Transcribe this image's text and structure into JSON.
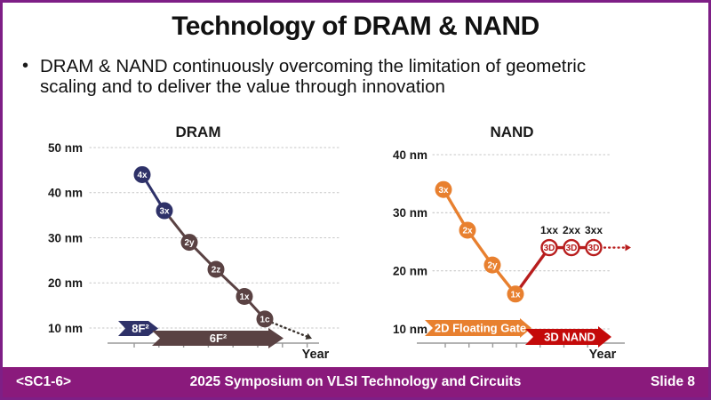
{
  "slide": {
    "title": "Technology of DRAM & NAND",
    "bullet_marker": "•",
    "bullet": "DRAM & NAND continuously overcoming the limitation of geometric\nscaling and to deliver the value through innovation"
  },
  "footer": {
    "left": "<SC1-6>",
    "center": "2025 Symposium on VLSI Technology and Circuits",
    "right": "Slide 8",
    "bar_color": "#8a1a7c"
  },
  "theme": {
    "border_color": "#7e1f86",
    "accent_navy": "#2e3168",
    "accent_brown": "#5a4243",
    "accent_orange": "#e8802f",
    "accent_red": "#b81d1d",
    "accent_bright_red": "#c40a0a"
  },
  "chart_data": [
    {
      "type": "line",
      "title": "DRAM",
      "xlabel": "Year",
      "ylabel": "",
      "y_unit": "nm",
      "ylim": [
        10,
        50
      ],
      "ytick_step": 10,
      "grid": true,
      "points": [
        {
          "label": "4x",
          "nm": 44,
          "fill": "#2e3168"
        },
        {
          "label": "3x",
          "nm": 36,
          "fill": "#2e3168"
        },
        {
          "label": "2y",
          "nm": 29,
          "fill": "#5a4243"
        },
        {
          "label": "2z",
          "nm": 23,
          "fill": "#5a4243"
        },
        {
          "label": "1x",
          "nm": 17,
          "fill": "#5a4243"
        },
        {
          "label": "1c",
          "nm": 12,
          "fill": "#5a4243"
        }
      ],
      "trail_color": "#3a332e",
      "era_arrows": [
        {
          "label": "8F²",
          "color": "#2e3168"
        },
        {
          "label": "6F²",
          "color": "#5a4243"
        }
      ]
    },
    {
      "type": "line",
      "title": "NAND",
      "xlabel": "Year",
      "ylabel": "",
      "y_unit": "nm",
      "ylim": [
        10,
        40
      ],
      "ytick_step": 10,
      "grid": true,
      "points": [
        {
          "label": "3x",
          "nm": 34,
          "fill": "#e8802f"
        },
        {
          "label": "2x",
          "nm": 27,
          "fill": "#e8802f"
        },
        {
          "label": "2y",
          "nm": 21,
          "fill": "#e8802f"
        },
        {
          "label": "1x",
          "nm": 16,
          "fill": "#e8802f"
        },
        {
          "label": "3D",
          "nm": 24,
          "outlined": true,
          "stroke": "#b81d1d",
          "top_label": "1xx"
        },
        {
          "label": "3D",
          "nm": 24,
          "outlined": true,
          "stroke": "#b81d1d",
          "top_label": "2xx"
        },
        {
          "label": "3D",
          "nm": 24,
          "outlined": true,
          "stroke": "#b81d1d",
          "top_label": "3xx"
        }
      ],
      "trail_color": "#b81d1d",
      "era_arrows": [
        {
          "label": "2D Floating Gate",
          "color": "#e8802f"
        },
        {
          "label": "3D NAND",
          "color": "#c40a0a"
        }
      ]
    }
  ]
}
